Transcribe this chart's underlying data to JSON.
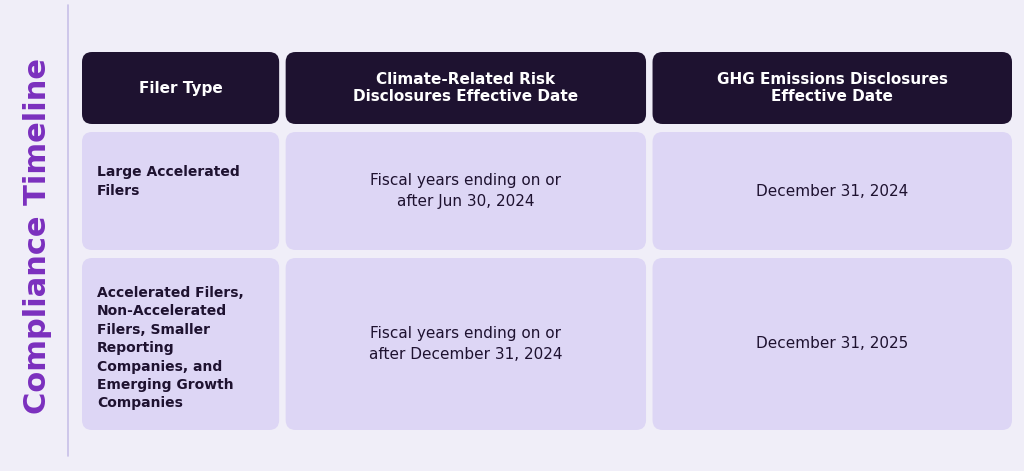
{
  "title_compliance": "Compliance",
  "title_timeline": "Timeline",
  "background_color": "#f0eef8",
  "left_line_color": "#c8c0e8",
  "title_color": "#7B2FBE",
  "header_bg_color": "#1e1230",
  "header_text_color": "#ffffff",
  "cell_bg_color": "#ddd6f5",
  "cell_text_color": "#1e1230",
  "col1_header": "Filer Type",
  "col2_header": "Climate-Related Risk\nDisclosures Effective Date",
  "col3_header": "GHG Emissions Disclosures\nEffective Date",
  "row1_col1": "Large Accelerated\nFilers",
  "row1_col2": "Fiscal years ending on or\nafter Jun 30, 2024",
  "row1_col3": "December 31, 2024",
  "row2_col1": "Accelerated Filers,\nNon-Accelerated\nFilers, Smaller\nReporting\nCompanies, and\nEmerging Growth\nCompanies",
  "row2_col2": "Fiscal years ending on or\nafter December 31, 2024",
  "row2_col3": "December 31, 2025",
  "fig_width": 10.24,
  "fig_height": 4.71
}
